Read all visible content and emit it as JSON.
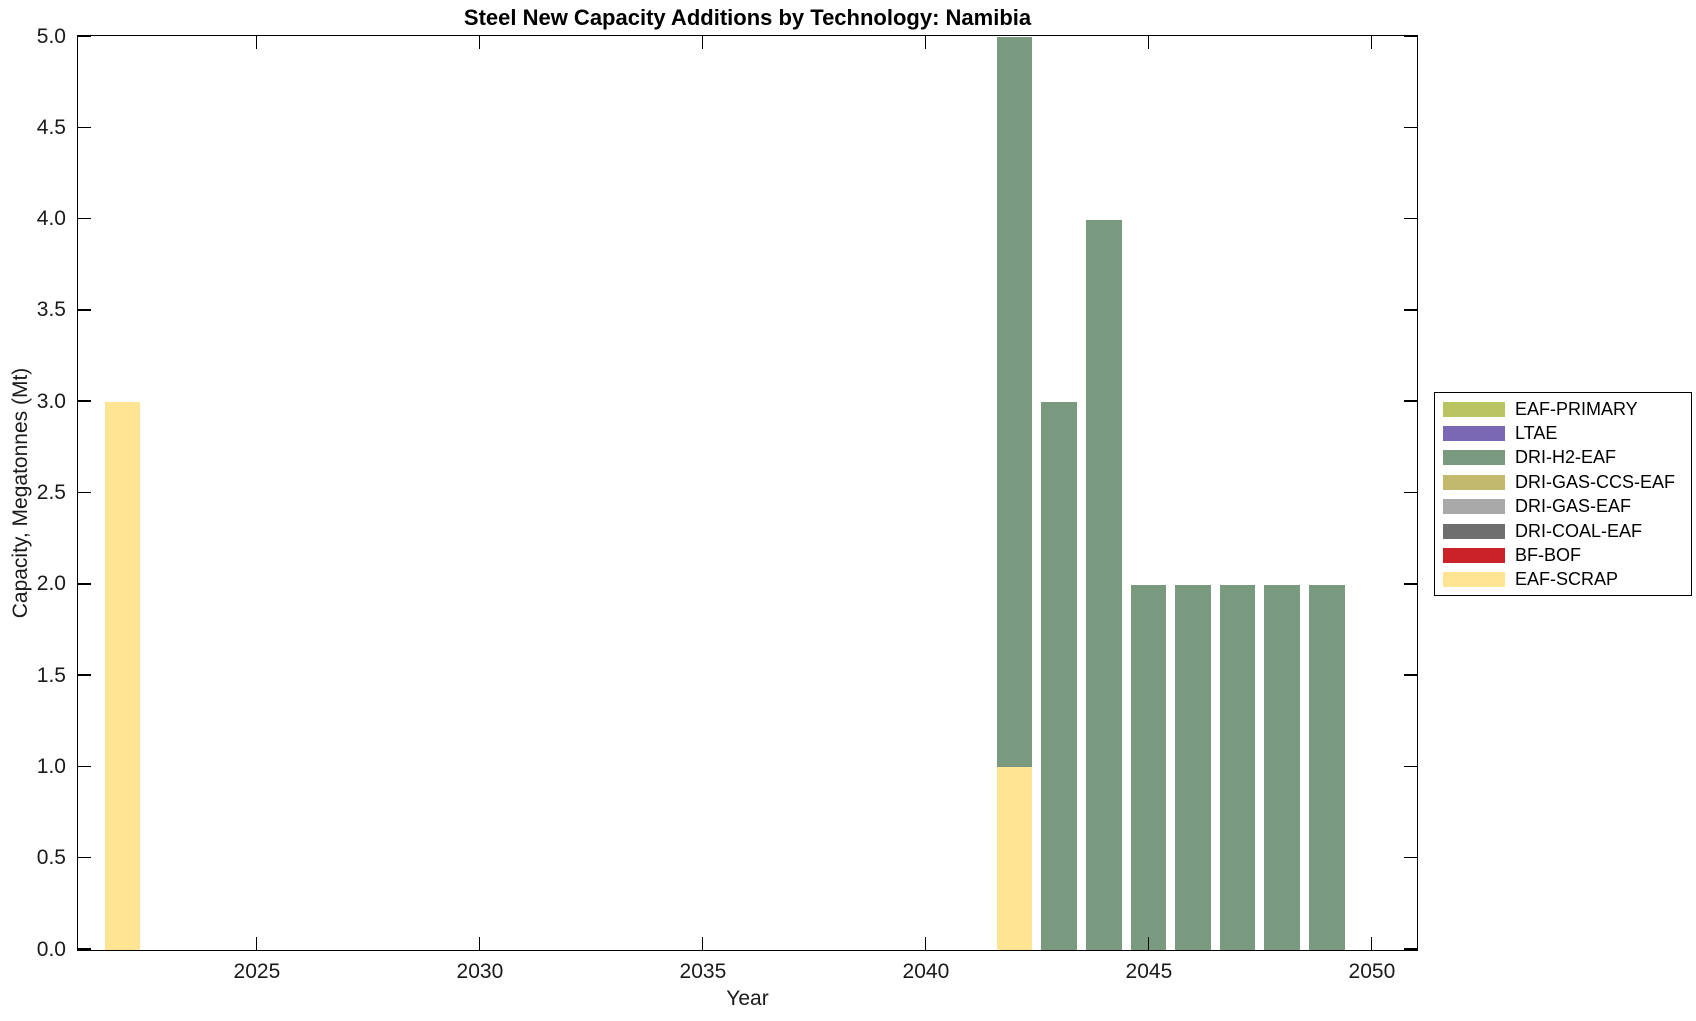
{
  "figure": {
    "title": "Steel New Capacity Additions by Technology: Namibia",
    "xlabel": "Year",
    "ylabel": "Capacity, Megatonnes (Mt)"
  },
  "chart_data": {
    "type": "bar",
    "stacked": true,
    "title": "Steel New Capacity Additions by Technology: Namibia",
    "xlabel": "Year",
    "ylabel": "Capacity, Megatonnes (Mt)",
    "xlim": [
      2021,
      2051
    ],
    "ylim": [
      0,
      5
    ],
    "xticks": [
      2025,
      2030,
      2035,
      2040,
      2045,
      2050
    ],
    "ytick_labels": [
      "0.0",
      "0.5",
      "1.0",
      "1.5",
      "2.0",
      "2.5",
      "3.0",
      "3.5",
      "4.0",
      "4.5",
      "5.0"
    ],
    "bar_width_years": 0.8,
    "grid": false,
    "legend_position": "outside-right",
    "legend": [
      {
        "label": "EAF-PRIMARY",
        "color": "#b8c561"
      },
      {
        "label": "LTAE",
        "color": "#7b68b5"
      },
      {
        "label": "DRI-H2-EAF",
        "color": "#7a9a7f"
      },
      {
        "label": "DRI-GAS-CCS-EAF",
        "color": "#c2b96e"
      },
      {
        "label": "DRI-GAS-EAF",
        "color": "#a8a8a8"
      },
      {
        "label": "DRI-COAL-EAF",
        "color": "#6e6e6e"
      },
      {
        "label": "BF-BOF",
        "color": "#cb2128"
      },
      {
        "label": "EAF-SCRAP",
        "color": "#fee493"
      }
    ],
    "bars": [
      {
        "year": 2022,
        "segments": [
          {
            "tech": "EAF-SCRAP",
            "value": 3.0
          }
        ]
      },
      {
        "year": 2042,
        "segments": [
          {
            "tech": "EAF-SCRAP",
            "value": 1.0
          },
          {
            "tech": "DRI-H2-EAF",
            "value": 4.0
          }
        ]
      },
      {
        "year": 2043,
        "segments": [
          {
            "tech": "DRI-H2-EAF",
            "value": 3.0
          }
        ]
      },
      {
        "year": 2044,
        "segments": [
          {
            "tech": "DRI-H2-EAF",
            "value": 4.0
          }
        ]
      },
      {
        "year": 2045,
        "segments": [
          {
            "tech": "DRI-H2-EAF",
            "value": 2.0
          }
        ]
      },
      {
        "year": 2046,
        "segments": [
          {
            "tech": "DRI-H2-EAF",
            "value": 2.0
          }
        ]
      },
      {
        "year": 2047,
        "segments": [
          {
            "tech": "DRI-H2-EAF",
            "value": 2.0
          }
        ]
      },
      {
        "year": 2048,
        "segments": [
          {
            "tech": "DRI-H2-EAF",
            "value": 2.0
          }
        ]
      },
      {
        "year": 2049,
        "segments": [
          {
            "tech": "DRI-H2-EAF",
            "value": 2.0
          }
        ]
      }
    ]
  }
}
